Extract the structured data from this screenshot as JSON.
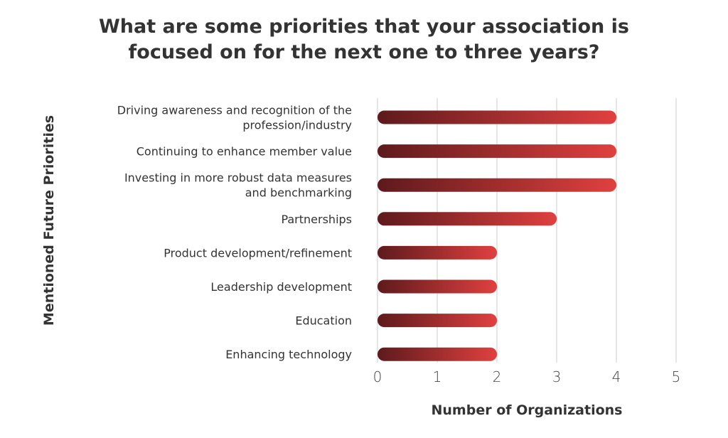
{
  "chart_data": {
    "type": "bar",
    "orientation": "horizontal",
    "title_lines": [
      "What are some priorities that your association is",
      "focused on for the next one to three years?"
    ],
    "xlabel": "Number of Organizations",
    "ylabel": "Mentioned Future Priorities",
    "categories": [
      [
        "Driving awareness and recognition of the",
        "profession/industry"
      ],
      [
        "Continuing to enhance member value"
      ],
      [
        "Investing in more robust data measures",
        "and benchmarking"
      ],
      [
        "Partnerships"
      ],
      [
        "Product development/refinement"
      ],
      [
        "Leadership development"
      ],
      [
        "Education"
      ],
      [
        "Enhancing technology"
      ]
    ],
    "values": [
      4,
      4,
      4,
      3,
      2,
      2,
      2,
      2
    ],
    "xlim": [
      0,
      5
    ],
    "xticks": [
      "0",
      "1",
      "2",
      "3",
      "4",
      "5"
    ],
    "grid": true,
    "legend": "none",
    "bar_gradient": [
      "#5e1a1c",
      "#e0403f"
    ]
  }
}
